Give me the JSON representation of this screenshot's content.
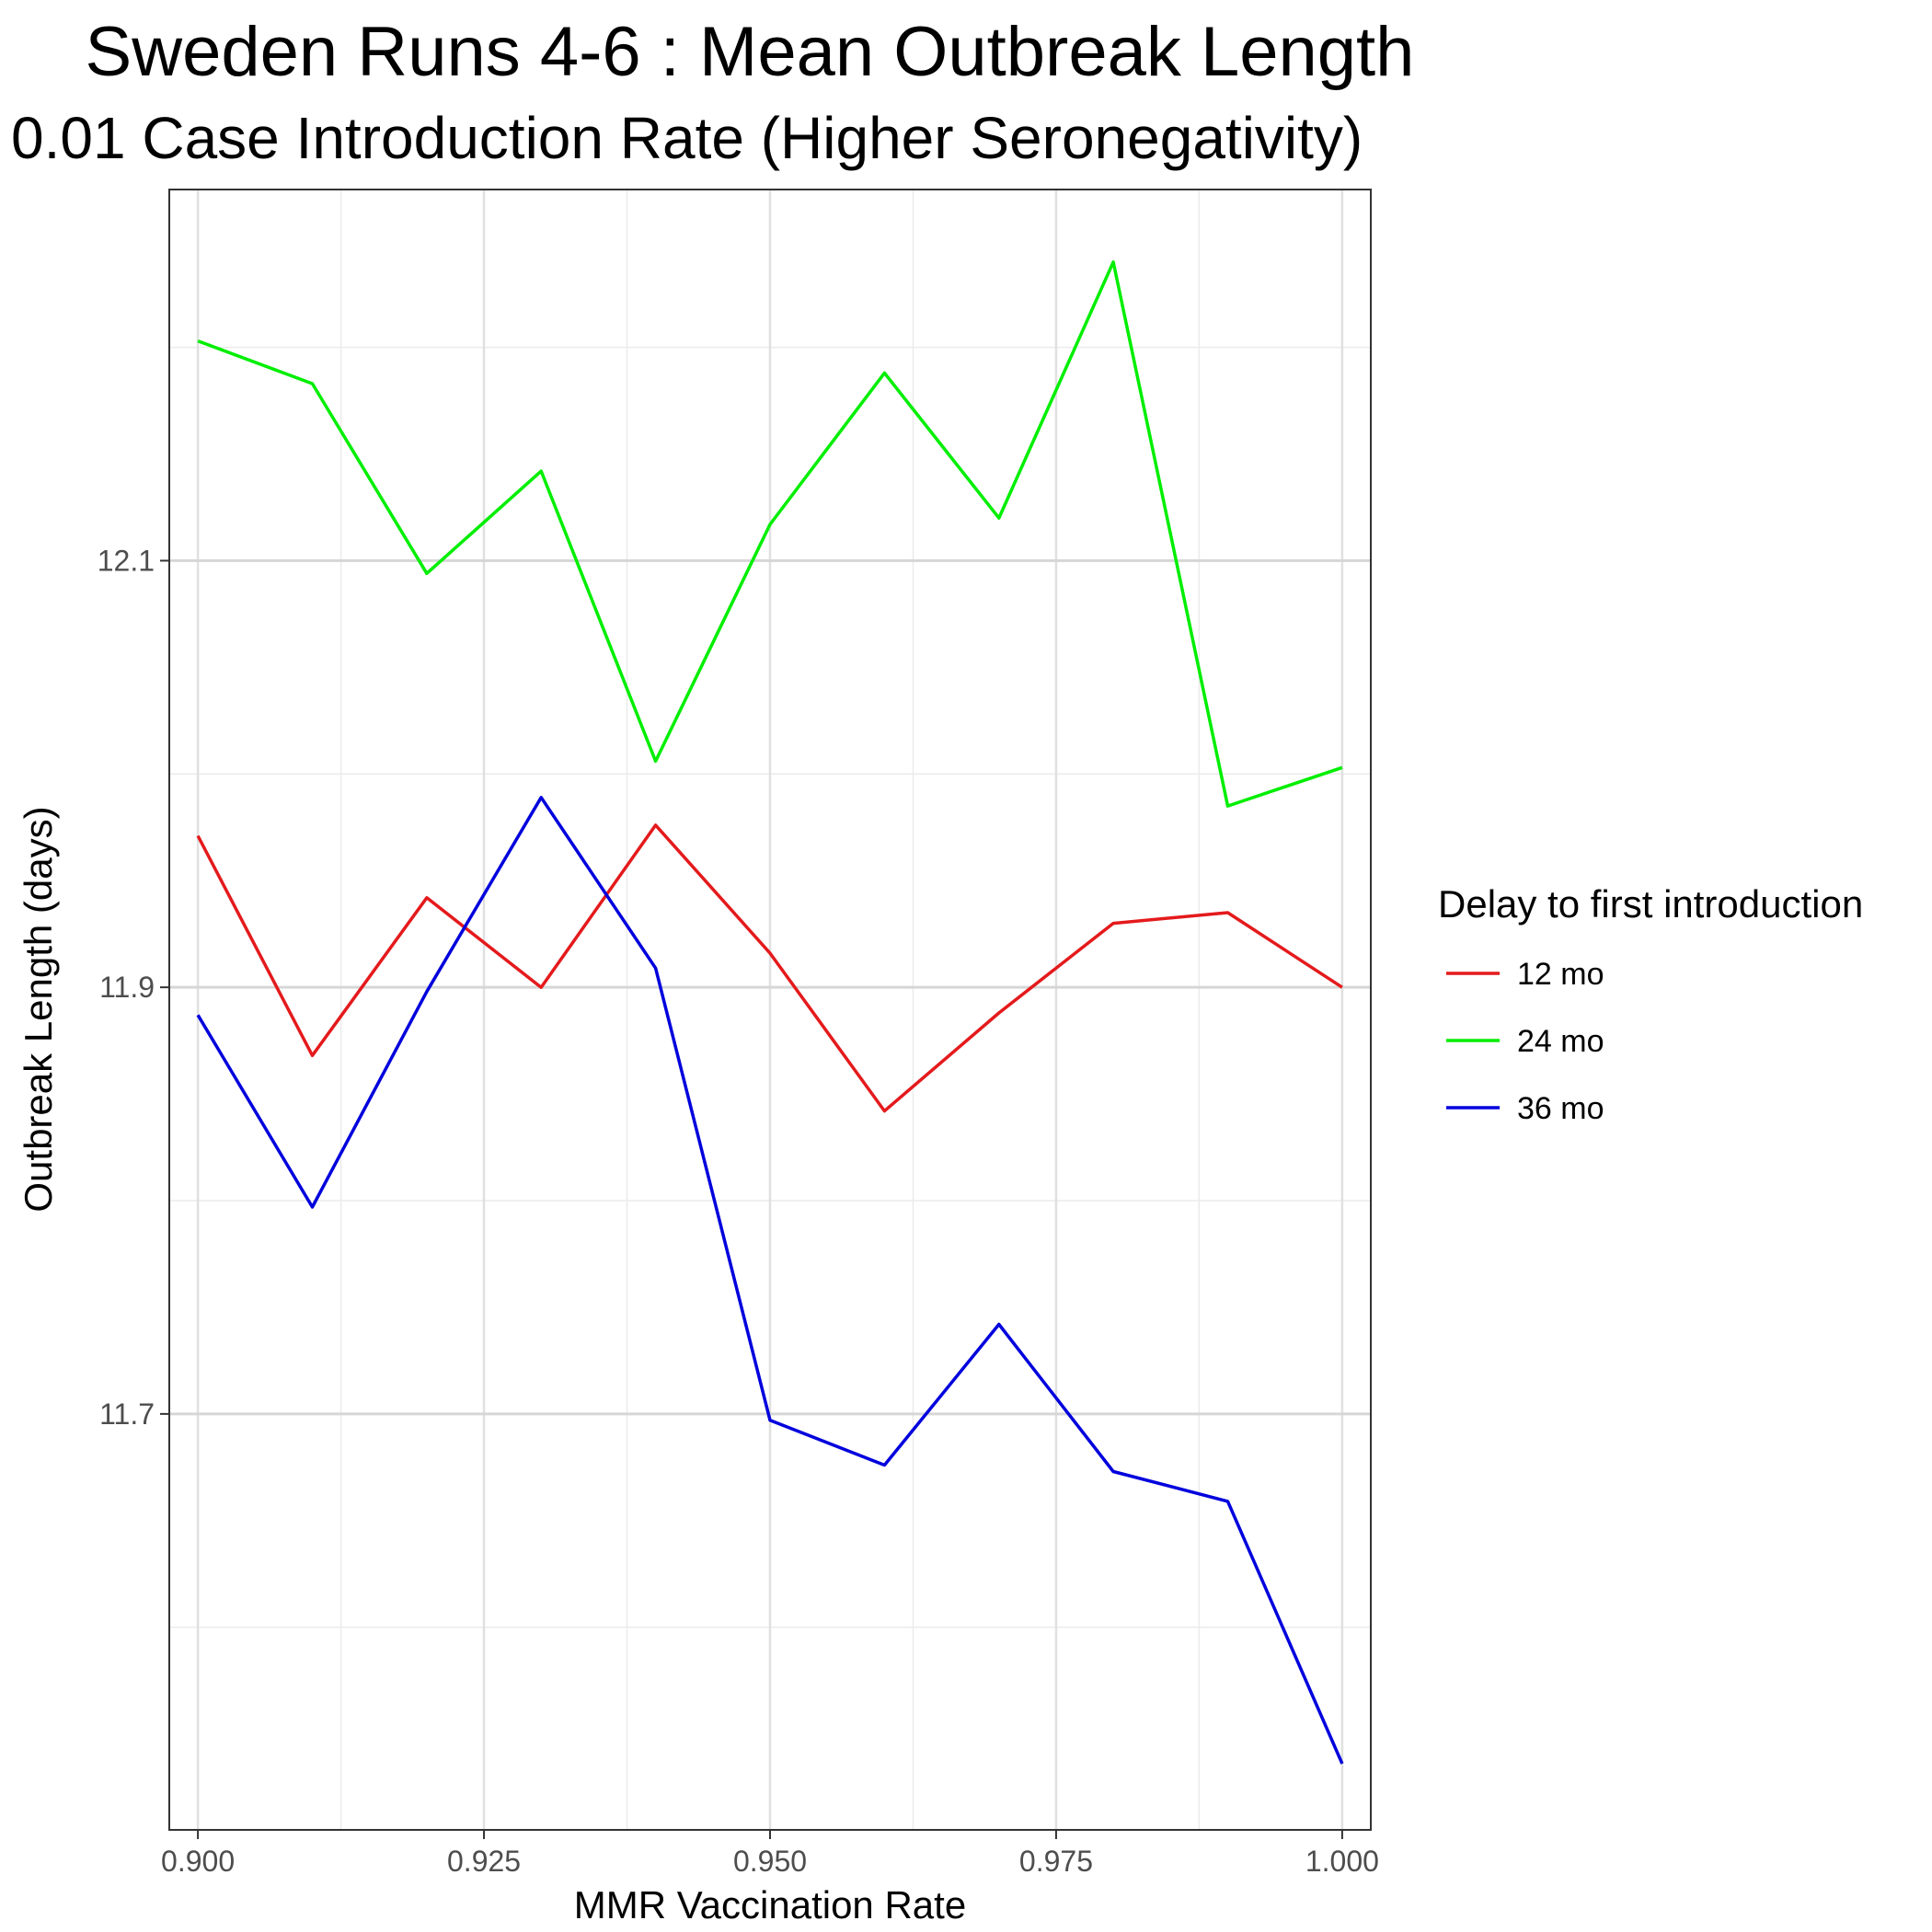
{
  "chart_data": {
    "type": "line",
    "title": "Sweden Runs 4-6 : Mean Outbreak Length",
    "subtitle": "0.01 Case Introduction Rate (Higher Seronegativity)",
    "xlabel": "MMR Vaccination Rate",
    "ylabel": "Outbreak Length (days)",
    "xlim": [
      0.8975,
      1.0025
    ],
    "ylim": [
      11.505,
      12.274
    ],
    "x_ticks": [
      0.9,
      0.925,
      0.95,
      0.975,
      1.0
    ],
    "x_tick_labels": [
      "0.900",
      "0.925",
      "0.950",
      "0.975",
      "1.000"
    ],
    "y_ticks": [
      11.7,
      11.9,
      12.1
    ],
    "y_tick_labels": [
      "11.7",
      "11.9",
      "12.1"
    ],
    "grid": true,
    "legend": {
      "title": "Delay to first introduction",
      "position": "right"
    },
    "x": [
      0.9,
      0.91,
      0.92,
      0.93,
      0.94,
      0.95,
      0.96,
      0.97,
      0.98,
      0.99,
      1.0
    ],
    "series": [
      {
        "name": "12 mo",
        "color": "#e41a1c",
        "values": [
          11.971,
          11.868,
          11.942,
          11.9,
          11.976,
          11.916,
          11.842,
          11.888,
          11.93,
          11.935,
          11.9
        ]
      },
      {
        "name": "24 mo",
        "color": "#00ee00",
        "values": [
          12.203,
          12.183,
          12.094,
          12.142,
          12.006,
          12.117,
          12.188,
          12.12,
          12.24,
          11.985,
          12.003
        ]
      },
      {
        "name": "36 mo",
        "color": "#0000dd",
        "values": [
          11.887,
          11.797,
          11.898,
          11.989,
          11.909,
          11.697,
          11.676,
          11.742,
          11.673,
          11.659,
          11.536
        ]
      }
    ]
  }
}
